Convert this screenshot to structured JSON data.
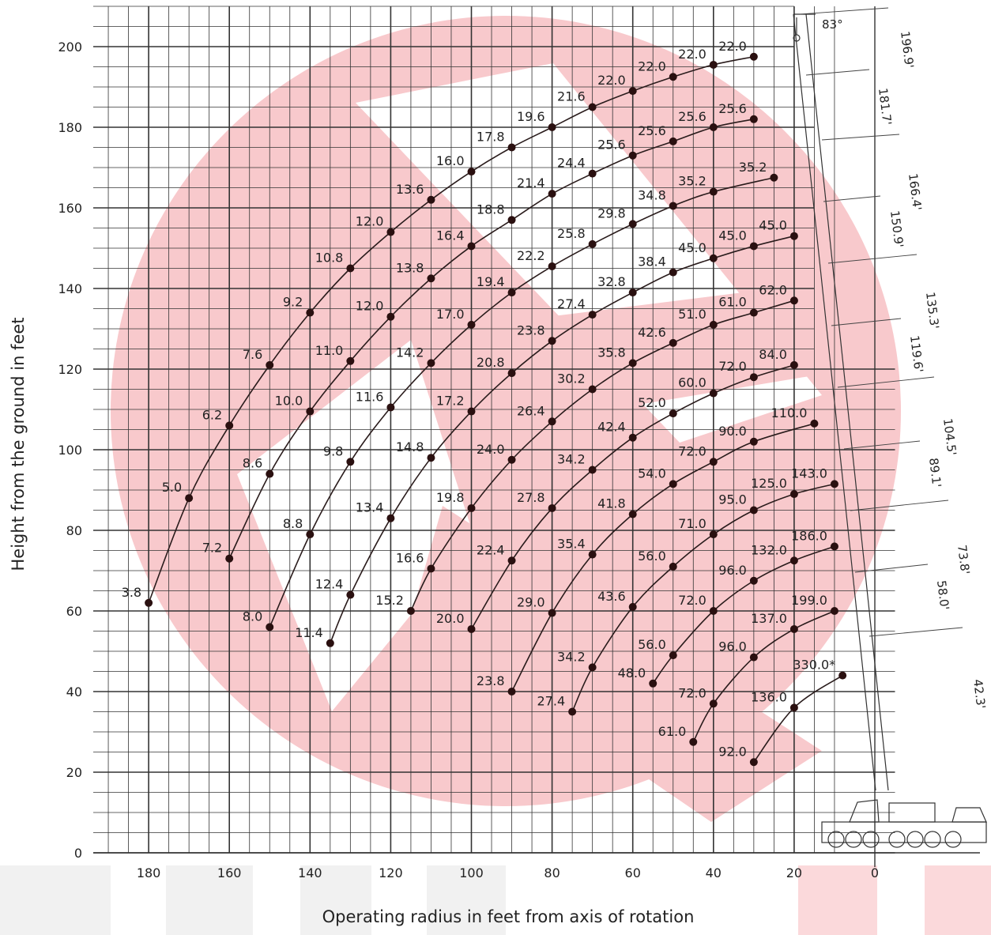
{
  "chart_data": {
    "type": "line",
    "xlabel": "Operating radius in feet from axis of rotation",
    "ylabel": "Height from the ground in feet",
    "xlim": [
      195,
      -30
    ],
    "ylim": [
      0,
      212
    ],
    "x_axis_reversed": true,
    "x_ticks": [
      180,
      160,
      140,
      120,
      100,
      80,
      60,
      40,
      20,
      0
    ],
    "y_ticks": [
      0,
      20,
      40,
      60,
      80,
      100,
      120,
      140,
      160,
      180,
      200
    ],
    "grid": true,
    "boom_angle_label": "83°",
    "boom_length_labels": [
      "196.9'",
      "181.7'",
      "166.4'",
      "150.9'",
      "135.3'",
      "119.6'",
      "104.5'",
      "89.1'",
      "73.8'",
      "58.0'",
      "42.3'"
    ],
    "colors": {
      "curve": "#2a1c1c",
      "point": "#2a1010",
      "grid": "#333333",
      "watermark": "#f8c9cc"
    },
    "series": [
      {
        "points": [
          [
            180,
            62
          ],
          [
            170,
            88
          ],
          [
            160,
            106
          ],
          [
            150,
            121
          ],
          [
            140,
            134
          ],
          [
            130,
            145
          ],
          [
            120,
            154
          ],
          [
            110,
            162
          ],
          [
            100,
            169
          ],
          [
            90,
            175
          ],
          [
            80,
            180
          ],
          [
            70,
            185
          ],
          [
            60,
            189
          ],
          [
            50,
            192.5
          ],
          [
            40,
            195.5
          ],
          [
            30,
            197.5
          ]
        ],
        "labels": [
          "3.8",
          "5.0",
          "6.2",
          "7.6",
          "9.2",
          "10.8",
          "12.0",
          "13.6",
          "16.0",
          "17.8",
          "19.6",
          "21.6",
          "22.0",
          "22.0",
          "22.0",
          "22.0"
        ]
      },
      {
        "points": [
          [
            160,
            73
          ],
          [
            150,
            94
          ],
          [
            140,
            109.5
          ],
          [
            130,
            122
          ],
          [
            120,
            133
          ],
          [
            110,
            142.5
          ],
          [
            100,
            150.5
          ],
          [
            90,
            157
          ],
          [
            80,
            163.5
          ],
          [
            70,
            168.5
          ],
          [
            60,
            173
          ],
          [
            50,
            176.5
          ],
          [
            40,
            180
          ],
          [
            30,
            182
          ]
        ],
        "labels": [
          "7.2",
          "8.6",
          "10.0",
          "11.0",
          "12.0",
          "13.8",
          "16.4",
          "18.8",
          "21.4",
          "24.4",
          "25.6",
          "25.6",
          "25.6",
          "25.6"
        ]
      },
      {
        "points": [
          [
            150,
            56
          ],
          [
            140,
            79
          ],
          [
            130,
            97
          ],
          [
            120,
            110.5
          ],
          [
            110,
            121.5
          ],
          [
            100,
            131
          ],
          [
            90,
            139
          ],
          [
            80,
            145.5
          ],
          [
            70,
            151
          ],
          [
            60,
            156
          ],
          [
            50,
            160.5
          ],
          [
            40,
            164
          ],
          [
            25,
            167.5
          ]
        ],
        "labels": [
          "8.0",
          "8.8",
          "9.8",
          "11.6",
          "14.2",
          "17.0",
          "19.4",
          "22.2",
          "25.8",
          "29.8",
          "34.8",
          "35.2",
          "35.2"
        ]
      },
      {
        "points": [
          [
            135,
            52
          ],
          [
            130,
            64
          ],
          [
            120,
            83
          ],
          [
            110,
            98
          ],
          [
            100,
            109.5
          ],
          [
            90,
            119
          ],
          [
            80,
            127
          ],
          [
            70,
            133.5
          ],
          [
            60,
            139
          ],
          [
            50,
            144
          ],
          [
            40,
            147.5
          ],
          [
            30,
            150.5
          ],
          [
            20,
            153
          ]
        ],
        "labels": [
          "11.4",
          "12.4",
          "13.4",
          "14.8",
          "17.2",
          "20.8",
          "23.8",
          "27.4",
          "32.8",
          "38.4",
          "45.0",
          "45.0",
          "45.0"
        ]
      },
      {
        "points": [
          [
            115,
            60
          ],
          [
            110,
            70.5
          ],
          [
            100,
            85.5
          ],
          [
            90,
            97.5
          ],
          [
            80,
            107
          ],
          [
            70,
            115
          ],
          [
            60,
            121.5
          ],
          [
            50,
            126.5
          ],
          [
            40,
            131
          ],
          [
            30,
            134
          ],
          [
            20,
            137
          ]
        ],
        "labels": [
          "15.2",
          "16.6",
          "19.8",
          "24.0",
          "26.4",
          "30.2",
          "35.8",
          "42.6",
          "51.0",
          "61.0",
          "62.0"
        ]
      },
      {
        "points": [
          [
            100,
            55.5
          ],
          [
            90,
            72.5
          ],
          [
            80,
            85.5
          ],
          [
            70,
            95
          ],
          [
            60,
            103
          ],
          [
            50,
            109
          ],
          [
            40,
            114
          ],
          [
            30,
            118
          ],
          [
            20,
            121
          ]
        ],
        "labels": [
          "20.0",
          "22.4",
          "27.8",
          "34.2",
          "42.4",
          "52.0",
          "60.0",
          "72.0",
          "84.0"
        ]
      },
      {
        "points": [
          [
            90,
            40
          ],
          [
            80,
            59.5
          ],
          [
            70,
            74
          ],
          [
            60,
            84
          ],
          [
            50,
            91.5
          ],
          [
            40,
            97
          ],
          [
            30,
            102
          ],
          [
            15,
            106.5
          ]
        ],
        "labels": [
          "23.8",
          "29.0",
          "35.4",
          "41.8",
          "54.0",
          "72.0",
          "90.0",
          "110.0"
        ]
      },
      {
        "points": [
          [
            75,
            35
          ],
          [
            70,
            46
          ],
          [
            60,
            61
          ],
          [
            50,
            71
          ],
          [
            40,
            79
          ],
          [
            30,
            85
          ],
          [
            20,
            89
          ],
          [
            10,
            91.5
          ]
        ],
        "labels": [
          "27.4",
          "34.2",
          "43.6",
          "56.0",
          "71.0",
          "95.0",
          "125.0",
          "143.0"
        ]
      },
      {
        "points": [
          [
            55,
            42
          ],
          [
            50,
            49
          ],
          [
            40,
            60
          ],
          [
            30,
            67.5
          ],
          [
            20,
            72.5
          ],
          [
            10,
            76
          ]
        ],
        "labels": [
          "48.0",
          "56.0",
          "72.0",
          "96.0",
          "132.0",
          "186.0"
        ]
      },
      {
        "points": [
          [
            45,
            27.5
          ],
          [
            40,
            37
          ],
          [
            30,
            48.5
          ],
          [
            20,
            55.5
          ],
          [
            10,
            60
          ]
        ],
        "labels": [
          "61.0",
          "72.0",
          "96.0",
          "137.0",
          "199.0"
        ]
      },
      {
        "points": [
          [
            30,
            22.5
          ],
          [
            20,
            36
          ],
          [
            8,
            44
          ]
        ],
        "labels": [
          "92.0",
          "136.0",
          "330.0*"
        ]
      }
    ]
  }
}
